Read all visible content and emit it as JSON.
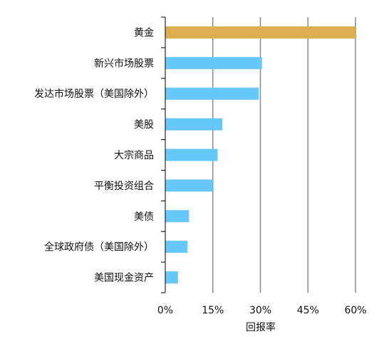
{
  "chart_data": {
    "type": "bar",
    "orientation": "horizontal",
    "categories": [
      "黄金",
      "新兴市场股票",
      "发达市场股票（美国除外）",
      "美股",
      "大宗商品",
      "平衡投资组合",
      "美债",
      "全球政府债（美国除外）",
      "美国现金资产"
    ],
    "values": [
      60,
      30.5,
      29.5,
      18,
      16.5,
      15,
      7.5,
      7,
      4
    ],
    "bar_colors": [
      "#dcae4e",
      "#66c7f9",
      "#66c7f9",
      "#66c7f9",
      "#66c7f9",
      "#66c7f9",
      "#66c7f9",
      "#66c7f9",
      "#66c7f9"
    ],
    "xlabel": "回报率",
    "xlim": [
      0,
      60
    ],
    "xticks": [
      0,
      15,
      30,
      45,
      60
    ],
    "xtick_labels": [
      "0%",
      "15%",
      "30%",
      "45%",
      "60%"
    ],
    "grid": "vertical",
    "gridline_color": "#8c8c8c",
    "axis_color": "#000000"
  }
}
